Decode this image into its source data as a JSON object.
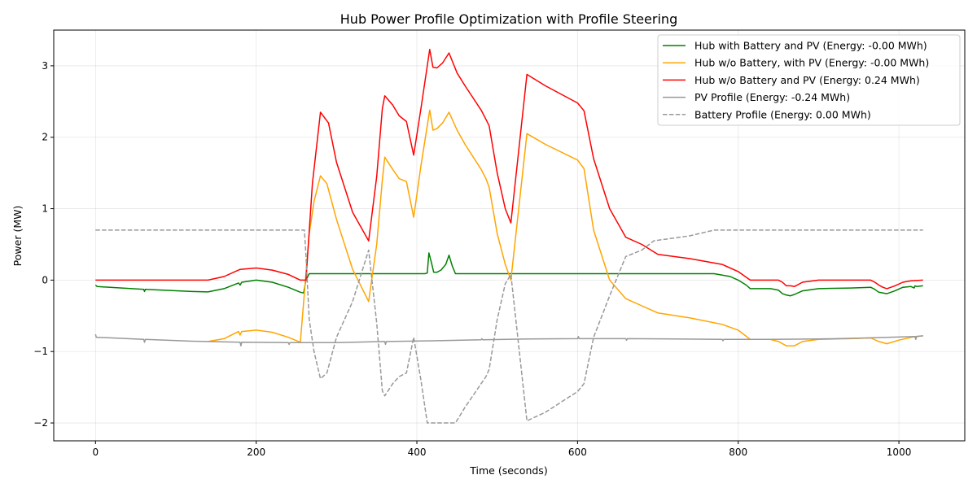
{
  "chart_data": {
    "type": "line",
    "title": "Hub Power Profile Optimization with Profile Steering",
    "xlabel": "Time (seconds)",
    "ylabel": "Power (MW)",
    "xlim": [
      -52,
      1082
    ],
    "ylim": [
      -2.25,
      3.5
    ],
    "xticks": [
      0,
      200,
      400,
      600,
      800,
      1000
    ],
    "yticks": [
      -2,
      -1,
      0,
      1,
      2,
      3
    ],
    "grid": true,
    "legend_position": "top-right",
    "series": [
      {
        "name": "Hub with Battery and PV (Energy: -0.00 MWh)",
        "color": "#008000",
        "dash": "solid",
        "x": [
          0,
          2,
          60,
          61,
          62,
          120,
          140,
          160,
          178,
          180,
          182,
          200,
          220,
          240,
          255,
          259,
          262,
          266,
          280,
          320,
          360,
          380,
          400,
          410,
          413,
          415,
          418,
          421,
          425,
          430,
          436,
          440,
          444,
          448,
          460,
          500,
          520,
          560,
          600,
          640,
          680,
          720,
          770,
          790,
          800,
          810,
          815,
          840,
          845,
          850,
          855,
          860,
          865,
          870,
          880,
          900,
          940,
          965,
          970,
          975,
          985,
          995,
          1005,
          1015,
          1019,
          1020,
          1022,
          1030
        ],
        "y": [
          -0.07,
          -0.09,
          -0.13,
          -0.16,
          -0.13,
          -0.16,
          -0.165,
          -0.12,
          -0.04,
          -0.07,
          -0.03,
          0.0,
          -0.03,
          -0.1,
          -0.17,
          -0.18,
          0.0,
          0.09,
          0.09,
          0.09,
          0.09,
          0.09,
          0.09,
          0.09,
          0.1,
          0.38,
          0.25,
          0.11,
          0.11,
          0.14,
          0.22,
          0.35,
          0.2,
          0.09,
          0.09,
          0.09,
          0.09,
          0.09,
          0.09,
          0.09,
          0.09,
          0.09,
          0.09,
          0.05,
          0.0,
          -0.07,
          -0.12,
          -0.12,
          -0.13,
          -0.14,
          -0.19,
          -0.21,
          -0.22,
          -0.2,
          -0.15,
          -0.12,
          -0.11,
          -0.1,
          -0.13,
          -0.17,
          -0.19,
          -0.15,
          -0.1,
          -0.09,
          -0.11,
          -0.08,
          -0.09,
          -0.08
        ]
      },
      {
        "name": "Hub w/o Battery, with PV (Energy: -0.00 MWh)",
        "color": "#ffa500",
        "dash": "solid",
        "x": [
          140,
          160,
          178,
          180,
          182,
          200,
          220,
          240,
          255,
          262,
          266,
          272,
          280,
          288,
          300,
          320,
          340,
          350,
          357,
          360,
          370,
          378,
          387,
          396,
          405,
          416,
          420,
          425,
          432,
          440,
          450,
          460,
          480,
          486,
          490,
          500,
          510,
          517,
          537,
          560,
          600,
          608,
          620,
          640,
          660,
          680,
          700,
          740,
          780,
          800,
          815,
          840,
          850,
          860,
          870,
          880,
          900,
          940,
          965,
          975,
          985,
          1000,
          1020,
          1030
        ],
        "y": [
          -0.86,
          -0.82,
          -0.72,
          -0.77,
          -0.72,
          -0.7,
          -0.73,
          -0.8,
          -0.87,
          0.09,
          0.65,
          1.1,
          1.46,
          1.35,
          0.85,
          0.15,
          -0.3,
          0.5,
          1.4,
          1.72,
          1.55,
          1.42,
          1.38,
          0.88,
          1.6,
          2.38,
          2.1,
          2.12,
          2.2,
          2.35,
          2.1,
          1.9,
          1.55,
          1.42,
          1.3,
          0.65,
          0.22,
          0.0,
          2.05,
          1.9,
          1.68,
          1.56,
          0.7,
          0.0,
          -0.26,
          -0.36,
          -0.46,
          -0.53,
          -0.62,
          -0.7,
          -0.83,
          -0.83,
          -0.86,
          -0.92,
          -0.92,
          -0.86,
          -0.83,
          -0.82,
          -0.81,
          -0.86,
          -0.89,
          -0.84,
          -0.79,
          -0.78
        ]
      },
      {
        "name": "Hub w/o Battery and PV (Energy: 0.24 MWh)",
        "color": "#ff0000",
        "dash": "solid",
        "x": [
          0,
          140,
          160,
          180,
          200,
          220,
          240,
          255,
          262,
          270,
          280,
          290,
          300,
          320,
          340,
          350,
          357,
          360,
          370,
          378,
          387,
          396,
          405,
          416,
          420,
          425,
          432,
          440,
          450,
          460,
          480,
          486,
          490,
          500,
          510,
          517,
          537,
          560,
          600,
          608,
          620,
          640,
          660,
          680,
          700,
          740,
          780,
          800,
          815,
          850,
          855,
          860,
          865,
          870,
          880,
          900,
          965,
          970,
          975,
          980,
          985,
          995,
          1005,
          1015,
          1030
        ],
        "y": [
          0.0,
          0.0,
          0.05,
          0.15,
          0.17,
          0.14,
          0.08,
          0.0,
          0.0,
          1.35,
          2.35,
          2.2,
          1.65,
          0.95,
          0.55,
          1.45,
          2.4,
          2.58,
          2.45,
          2.3,
          2.22,
          1.75,
          2.4,
          3.23,
          2.98,
          2.97,
          3.04,
          3.18,
          2.9,
          2.72,
          2.38,
          2.25,
          2.16,
          1.5,
          1.0,
          0.8,
          2.88,
          2.72,
          2.48,
          2.37,
          1.7,
          1.0,
          0.6,
          0.5,
          0.36,
          0.3,
          0.22,
          0.12,
          0.0,
          0.0,
          -0.03,
          -0.08,
          -0.08,
          -0.09,
          -0.03,
          0.0,
          0.0,
          -0.03,
          -0.07,
          -0.1,
          -0.12,
          -0.08,
          -0.03,
          -0.01,
          0.0
        ]
      },
      {
        "name": "PV Profile (Energy: -0.24 MWh)",
        "color": "#999999",
        "dash": "solid",
        "x": [
          0,
          1,
          2,
          60,
          61,
          62,
          120,
          180,
          181,
          182,
          240,
          241,
          242,
          300,
          360,
          361,
          362,
          420,
          480,
          481,
          482,
          540,
          600,
          601,
          602,
          660,
          661,
          662,
          720,
          780,
          781,
          782,
          840,
          900,
          960,
          1020,
          1021,
          1022,
          1030
        ],
        "y": [
          -0.76,
          -0.8,
          -0.8,
          -0.83,
          -0.87,
          -0.83,
          -0.855,
          -0.87,
          -0.92,
          -0.87,
          -0.875,
          -0.9,
          -0.875,
          -0.875,
          -0.86,
          -0.9,
          -0.86,
          -0.85,
          -0.835,
          -0.82,
          -0.835,
          -0.825,
          -0.82,
          -0.79,
          -0.82,
          -0.82,
          -0.84,
          -0.82,
          -0.825,
          -0.83,
          -0.85,
          -0.83,
          -0.83,
          -0.825,
          -0.81,
          -0.79,
          -0.83,
          -0.79,
          -0.78
        ]
      },
      {
        "name": "Battery Profile (Energy: 0.00 MWh)",
        "color": "#999999",
        "dash": "dashed",
        "x": [
          0,
          260,
          262,
          266,
          272,
          280,
          288,
          300,
          320,
          340,
          350,
          357,
          360,
          370,
          378,
          387,
          396,
          405,
          413,
          420,
          448,
          460,
          480,
          486,
          490,
          500,
          510,
          517,
          537,
          560,
          600,
          608,
          620,
          640,
          660,
          680,
          695,
          740,
          770,
          800,
          1030
        ],
        "y": [
          0.7,
          0.7,
          0.35,
          -0.55,
          -1.0,
          -1.38,
          -1.3,
          -0.8,
          -0.3,
          0.42,
          -0.6,
          -1.55,
          -1.62,
          -1.45,
          -1.35,
          -1.3,
          -0.8,
          -1.4,
          -2.0,
          -2.0,
          -2.0,
          -1.78,
          -1.45,
          -1.35,
          -1.25,
          -0.55,
          -0.05,
          0.08,
          -1.97,
          -1.85,
          -1.56,
          -1.45,
          -0.8,
          -0.22,
          0.33,
          0.42,
          0.55,
          0.62,
          0.7,
          0.7,
          0.7
        ]
      }
    ]
  }
}
